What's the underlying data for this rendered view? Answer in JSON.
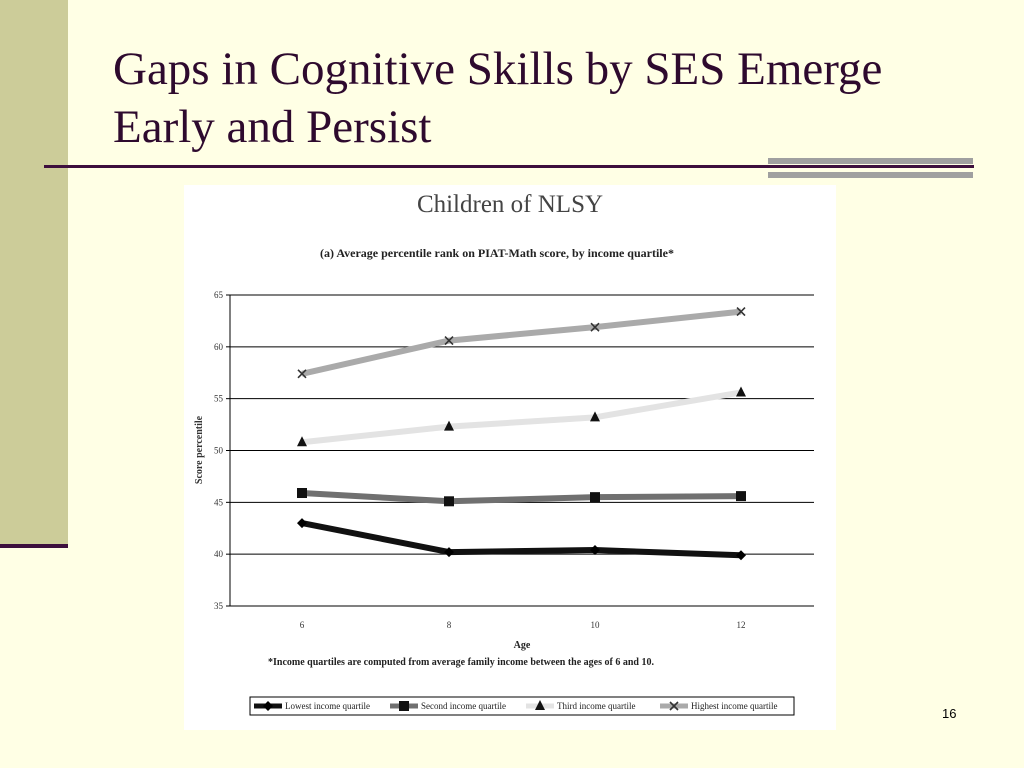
{
  "slide": {
    "title": "Gaps in Cognitive Skills by SES Emerge Early and Persist",
    "page_number": "16"
  },
  "colors": {
    "background": "#FFFFE5",
    "sidebar": "#CCCC99",
    "accent": "#3D0F3D",
    "title": "#2E0A2E"
  },
  "chart_data": {
    "type": "line",
    "title": "Children of NLSY",
    "subtitle": "(a) Average percentile rank on PIAT-Math score, by income quartile*",
    "xlabel": "Age",
    "ylabel": "Score percentile",
    "footnote": "*Income quartiles are computed from average family income between the ages of 6 and 10.",
    "x": [
      6,
      8,
      10,
      12
    ],
    "x_tick_labels": [
      "6",
      "8",
      "10",
      "12"
    ],
    "ylim": [
      35,
      65
    ],
    "y_ticks": [
      35,
      40,
      45,
      50,
      55,
      60,
      65
    ],
    "y_tick_labels": [
      "35",
      "40",
      "45",
      "50",
      "55",
      "60",
      "65"
    ],
    "grid": "horizontal",
    "legend_position": "bottom",
    "series": [
      {
        "name": "Lowest income quartile",
        "values": [
          43.0,
          40.2,
          40.4,
          39.9
        ],
        "color": "#111111",
        "marker": "diamond"
      },
      {
        "name": "Second income quartile",
        "values": [
          45.9,
          45.1,
          45.5,
          45.6
        ],
        "color": "#707070",
        "marker": "square"
      },
      {
        "name": "Third income quartile",
        "values": [
          50.8,
          52.3,
          53.2,
          55.6
        ],
        "color": "#E3E3E3",
        "marker": "triangle"
      },
      {
        "name": "Highest income quartile",
        "values": [
          57.4,
          60.6,
          61.9,
          63.4
        ],
        "color": "#AAAAAA",
        "marker": "x"
      }
    ]
  }
}
